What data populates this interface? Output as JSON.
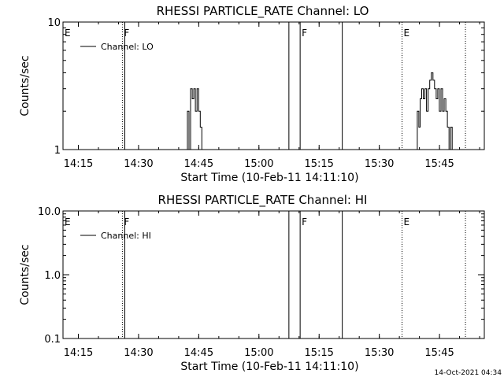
{
  "chart_data": [
    {
      "type": "line",
      "title": "RHESSI PARTICLE_RATE Channel: LO",
      "xlabel": "Start Time (10-Feb-11 14:11:10)",
      "ylabel": "Counts/sec",
      "y_scale": "log",
      "ylim": [
        1,
        10
      ],
      "xlim_minutes": [
        0,
        105
      ],
      "xticks": [
        "14:15",
        "14:30",
        "14:45",
        "15:00",
        "15:15",
        "15:30",
        "15:45"
      ],
      "xtick_minutes": [
        3.83,
        18.83,
        33.83,
        48.83,
        63.83,
        78.83,
        93.83
      ],
      "yticks": [
        "1",
        "10"
      ],
      "ytick_values": [
        1,
        10
      ],
      "legend": {
        "label": "Channel: LO",
        "placement": "top-left"
      },
      "markers": [
        {
          "label": "E",
          "minute": 0,
          "style": "none"
        },
        {
          "label": "F",
          "minute": 14.8,
          "style": "dotted"
        },
        {
          "label": "",
          "minute": 15.4,
          "style": "solid"
        },
        {
          "label": "",
          "minute": 56.3,
          "style": "solid"
        },
        {
          "label": "F",
          "minute": 59.1,
          "style": "solid"
        },
        {
          "label": "",
          "minute": 69.6,
          "style": "solid"
        },
        {
          "label": "E",
          "minute": 84.5,
          "style": "dotted"
        },
        {
          "label": "",
          "minute": 100.3,
          "style": "dotted"
        }
      ],
      "series": [
        {
          "name": "Channel: LO",
          "segments": [
            [
              [
                31.0,
                1
              ],
              [
                31.0,
                2
              ],
              [
                31.4,
                2
              ],
              [
                31.4,
                1
              ],
              [
                31.8,
                1
              ],
              [
                31.8,
                3
              ],
              [
                32.2,
                3
              ],
              [
                32.2,
                2.5
              ],
              [
                32.6,
                2.5
              ],
              [
                32.6,
                3
              ],
              [
                33.0,
                3
              ],
              [
                33.0,
                2
              ],
              [
                33.4,
                2
              ],
              [
                33.4,
                3
              ],
              [
                33.8,
                3
              ],
              [
                33.8,
                2
              ],
              [
                34.2,
                2
              ],
              [
                34.2,
                1.5
              ],
              [
                34.6,
                1.5
              ],
              [
                34.6,
                1
              ]
            ],
            [
              [
                88.3,
                1
              ],
              [
                88.3,
                2
              ],
              [
                88.7,
                2
              ],
              [
                88.7,
                1.5
              ],
              [
                89.0,
                1.5
              ],
              [
                89.0,
                2.5
              ],
              [
                89.4,
                2.5
              ],
              [
                89.4,
                3
              ],
              [
                89.8,
                3
              ],
              [
                89.8,
                2.5
              ],
              [
                90.2,
                2.5
              ],
              [
                90.2,
                3
              ],
              [
                90.6,
                3
              ],
              [
                90.6,
                2
              ],
              [
                91.0,
                2
              ],
              [
                91.0,
                3
              ],
              [
                91.4,
                3
              ],
              [
                91.4,
                3.5
              ],
              [
                91.8,
                3.5
              ],
              [
                91.8,
                4
              ],
              [
                92.2,
                4
              ],
              [
                92.2,
                3.5
              ],
              [
                92.6,
                3.5
              ],
              [
                92.6,
                3
              ],
              [
                93.0,
                3
              ],
              [
                93.0,
                2.5
              ],
              [
                93.4,
                2.5
              ],
              [
                93.4,
                3
              ],
              [
                93.8,
                3
              ],
              [
                93.8,
                2
              ],
              [
                94.2,
                2
              ],
              [
                94.2,
                3
              ],
              [
                94.6,
                3
              ],
              [
                94.6,
                2
              ],
              [
                95.0,
                2
              ],
              [
                95.0,
                2.5
              ],
              [
                95.4,
                2.5
              ],
              [
                95.4,
                2
              ],
              [
                95.8,
                2
              ],
              [
                95.8,
                1.5
              ],
              [
                96.2,
                1.5
              ],
              [
                96.2,
                1
              ],
              [
                96.6,
                1
              ],
              [
                96.6,
                1.5
              ],
              [
                97.0,
                1.5
              ],
              [
                97.0,
                1
              ]
            ]
          ]
        }
      ]
    },
    {
      "type": "line",
      "title": "RHESSI PARTICLE_RATE Channel: HI",
      "xlabel": "Start Time (10-Feb-11 14:11:10)",
      "ylabel": "Counts/sec",
      "y_scale": "log",
      "ylim": [
        0.1,
        10
      ],
      "xlim_minutes": [
        0,
        105
      ],
      "xticks": [
        "14:15",
        "14:30",
        "14:45",
        "15:00",
        "15:15",
        "15:30",
        "15:45"
      ],
      "xtick_minutes": [
        3.83,
        18.83,
        33.83,
        48.83,
        63.83,
        78.83,
        93.83
      ],
      "yticks": [
        "0.1",
        "1.0",
        "10.0"
      ],
      "ytick_values": [
        0.1,
        1,
        10
      ],
      "legend": {
        "label": "Channel: HI",
        "placement": "top-left"
      },
      "markers": [
        {
          "label": "E",
          "minute": 0,
          "style": "none"
        },
        {
          "label": "F",
          "minute": 14.8,
          "style": "dotted"
        },
        {
          "label": "",
          "minute": 15.4,
          "style": "solid"
        },
        {
          "label": "",
          "minute": 56.3,
          "style": "solid"
        },
        {
          "label": "F",
          "minute": 59.1,
          "style": "solid"
        },
        {
          "label": "",
          "minute": 69.6,
          "style": "solid"
        },
        {
          "label": "E",
          "minute": 84.5,
          "style": "dotted"
        },
        {
          "label": "",
          "minute": 100.3,
          "style": "dotted"
        }
      ],
      "series": [
        {
          "name": "Channel: HI",
          "segments": []
        }
      ]
    }
  ],
  "footer": {
    "timestamp": "14-Oct-2021 04:34"
  }
}
